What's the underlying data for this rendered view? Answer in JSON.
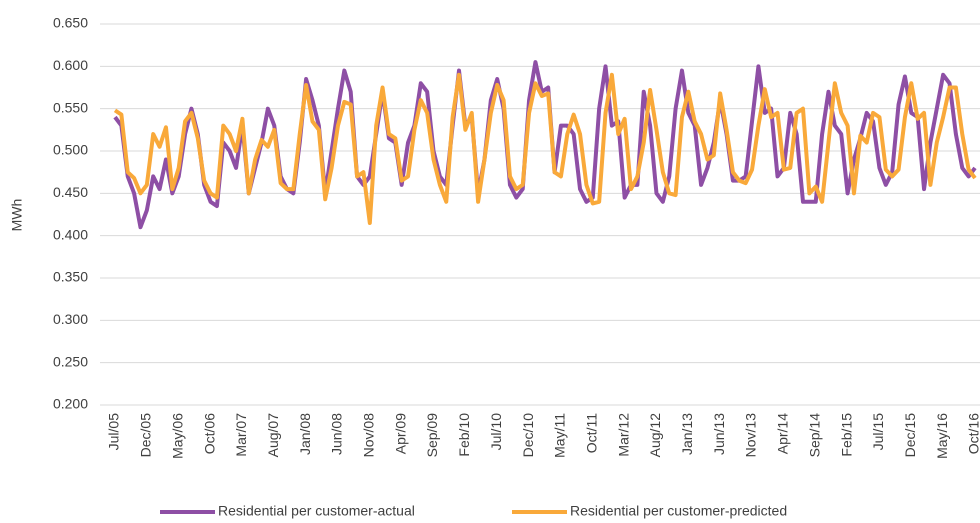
{
  "chart_data": {
    "type": "line",
    "y_label": "MWh",
    "categories": [
      "Jul/05",
      null,
      null,
      null,
      null,
      "Dec/05",
      null,
      null,
      null,
      null,
      "May/06",
      null,
      null,
      null,
      null,
      "Oct/06",
      null,
      null,
      null,
      null,
      "Mar/07",
      null,
      null,
      null,
      null,
      "Aug/07",
      null,
      null,
      null,
      null,
      "Jan/08",
      null,
      null,
      null,
      null,
      "Jun/08",
      null,
      null,
      null,
      null,
      "Nov/08",
      null,
      null,
      null,
      null,
      "Apr/09",
      null,
      null,
      null,
      null,
      "Sep/09",
      null,
      null,
      null,
      null,
      "Feb/10",
      null,
      null,
      null,
      null,
      "Jul/10",
      null,
      null,
      null,
      null,
      "Dec/10",
      null,
      null,
      null,
      null,
      "May/11",
      null,
      null,
      null,
      null,
      "Oct/11",
      null,
      null,
      null,
      null,
      "Mar/12",
      null,
      null,
      null,
      null,
      "Aug/12",
      null,
      null,
      null,
      null,
      "Jan/13",
      null,
      null,
      null,
      null,
      "Jun/13",
      null,
      null,
      null,
      null,
      "Nov/13",
      null,
      null,
      null,
      null,
      "Apr/14",
      null,
      null,
      null,
      null,
      "Sep/14",
      null,
      null,
      null,
      null,
      "Feb/15",
      null,
      null,
      null,
      null,
      "Jul/15",
      null,
      null,
      null,
      null,
      "Dec/15",
      null,
      null,
      null,
      null,
      "May/16",
      null,
      null,
      null,
      null,
      "Oct/16"
    ],
    "series": [
      {
        "name": "Residential per customer-actual",
        "color": "#8e4fa5",
        "values": [
          0.54,
          0.53,
          0.47,
          0.45,
          0.41,
          0.43,
          0.47,
          0.455,
          0.49,
          0.45,
          0.47,
          0.52,
          0.55,
          0.52,
          0.46,
          0.44,
          0.435,
          0.51,
          0.5,
          0.48,
          0.53,
          0.45,
          0.48,
          0.51,
          0.55,
          0.53,
          0.47,
          0.455,
          0.45,
          0.51,
          0.585,
          0.56,
          0.53,
          0.45,
          0.5,
          0.55,
          0.595,
          0.57,
          0.47,
          0.46,
          0.47,
          0.52,
          0.57,
          0.515,
          0.51,
          0.46,
          0.51,
          0.53,
          0.58,
          0.57,
          0.5,
          0.47,
          0.46,
          0.53,
          0.595,
          0.53,
          0.54,
          0.45,
          0.49,
          0.56,
          0.585,
          0.55,
          0.46,
          0.445,
          0.455,
          0.56,
          0.605,
          0.57,
          0.575,
          0.475,
          0.53,
          0.53,
          0.52,
          0.455,
          0.44,
          0.445,
          0.55,
          0.6,
          0.53,
          0.535,
          0.445,
          0.46,
          0.46,
          0.57,
          0.53,
          0.45,
          0.44,
          0.47,
          0.55,
          0.595,
          0.545,
          0.53,
          0.46,
          0.48,
          0.51,
          0.56,
          0.52,
          0.465,
          0.465,
          0.47,
          0.535,
          0.6,
          0.545,
          0.55,
          0.47,
          0.48,
          0.545,
          0.52,
          0.44,
          0.44,
          0.44,
          0.52,
          0.57,
          0.53,
          0.52,
          0.45,
          0.49,
          0.515,
          0.545,
          0.535,
          0.48,
          0.46,
          0.475,
          0.555,
          0.588,
          0.545,
          0.54,
          0.455,
          0.51,
          0.55,
          0.59,
          0.58,
          0.52,
          0.48,
          0.47,
          0.48
        ]
      },
      {
        "name": "Residential per customer-predicted",
        "color": "#f9a93a",
        "values": [
          0.548,
          0.543,
          0.475,
          0.468,
          0.45,
          0.46,
          0.52,
          0.505,
          0.528,
          0.455,
          0.48,
          0.535,
          0.545,
          0.515,
          0.465,
          0.45,
          0.445,
          0.53,
          0.52,
          0.5,
          0.538,
          0.45,
          0.49,
          0.513,
          0.505,
          0.525,
          0.462,
          0.455,
          0.455,
          0.52,
          0.578,
          0.535,
          0.525,
          0.443,
          0.48,
          0.53,
          0.558,
          0.555,
          0.47,
          0.475,
          0.415,
          0.53,
          0.575,
          0.52,
          0.515,
          0.465,
          0.47,
          0.525,
          0.56,
          0.545,
          0.49,
          0.46,
          0.44,
          0.54,
          0.59,
          0.525,
          0.545,
          0.44,
          0.49,
          0.545,
          0.578,
          0.56,
          0.47,
          0.455,
          0.46,
          0.545,
          0.58,
          0.565,
          0.568,
          0.475,
          0.47,
          0.52,
          0.543,
          0.52,
          0.46,
          0.438,
          0.44,
          0.545,
          0.59,
          0.52,
          0.538,
          0.455,
          0.47,
          0.51,
          0.572,
          0.525,
          0.475,
          0.45,
          0.448,
          0.54,
          0.57,
          0.535,
          0.52,
          0.49,
          0.495,
          0.568,
          0.525,
          0.475,
          0.465,
          0.462,
          0.478,
          0.53,
          0.573,
          0.54,
          0.545,
          0.478,
          0.48,
          0.545,
          0.55,
          0.45,
          0.458,
          0.44,
          0.51,
          0.58,
          0.545,
          0.53,
          0.45,
          0.518,
          0.51,
          0.545,
          0.54,
          0.478,
          0.47,
          0.478,
          0.54,
          0.58,
          0.538,
          0.545,
          0.46,
          0.51,
          0.54,
          0.575,
          0.575,
          0.52,
          0.478,
          0.468
        ]
      }
    ],
    "ylim": [
      0.2,
      0.65
    ],
    "yticks": [
      {
        "value": 0.2,
        "label": "0.200"
      },
      {
        "value": 0.25,
        "label": "0.250"
      },
      {
        "value": 0.3,
        "label": "0.300"
      },
      {
        "value": 0.35,
        "label": "0.350"
      },
      {
        "value": 0.4,
        "label": "0.400"
      },
      {
        "value": 0.45,
        "label": "0.450"
      },
      {
        "value": 0.5,
        "label": "0.500"
      },
      {
        "value": 0.55,
        "label": "0.550"
      },
      {
        "value": 0.6,
        "label": "0.600"
      },
      {
        "value": 0.65,
        "label": "0.650"
      }
    ],
    "grid": true
  }
}
